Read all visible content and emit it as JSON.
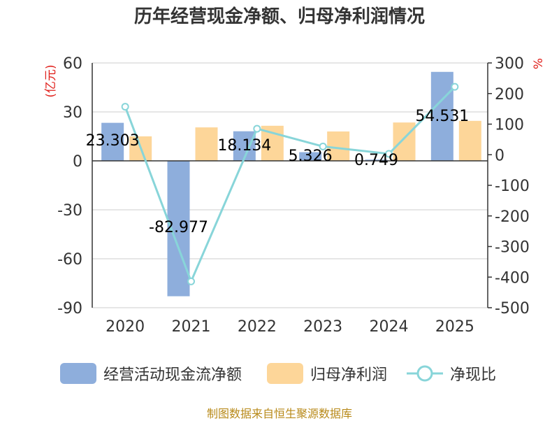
{
  "colors": {
    "bar_cashflow": "#8eaedc",
    "bar_profit": "#fdd699",
    "line_ratio": "#88d5d9",
    "unit_text": "#e0201b",
    "axis": "#333333",
    "grid": "#cccccc",
    "footer": "#b88a1a"
  },
  "chart_data": {
    "type": "bar",
    "title": "历年经营现金净额、归母净利润情况",
    "categories": [
      "2020",
      "2021",
      "2022",
      "2023",
      "2024",
      "2025"
    ],
    "y_left": {
      "label": "(亿元)",
      "min": -90,
      "max": 60,
      "ticks": [
        60,
        30,
        0,
        -30,
        -60,
        -90
      ]
    },
    "y_right": {
      "label": "%",
      "min": -500,
      "max": 300,
      "ticks": [
        300,
        200,
        100,
        0,
        -100,
        -200,
        -300,
        -400,
        -500
      ]
    },
    "series": [
      {
        "name": "经营活动现金流净额",
        "type": "bar",
        "axis": "left",
        "values": [
          23.303,
          -82.977,
          18.134,
          5.326,
          0.749,
          54.531
        ],
        "data_labels": [
          "23.303",
          "-82.977",
          "18.134",
          "5.326",
          "0.749",
          "54.531"
        ]
      },
      {
        "name": "归母净利润",
        "type": "bar",
        "axis": "left",
        "values": [
          15.0,
          20.5,
          21.5,
          18.0,
          23.5,
          24.5
        ]
      },
      {
        "name": "净现比",
        "type": "line",
        "axis": "right",
        "values": [
          157,
          -414,
          85,
          27,
          3,
          222
        ]
      }
    ]
  },
  "legend": [
    "经营活动现金流净额",
    "归母净利润",
    "净现比"
  ],
  "footer": "制图数据来自恒生聚源数据库"
}
